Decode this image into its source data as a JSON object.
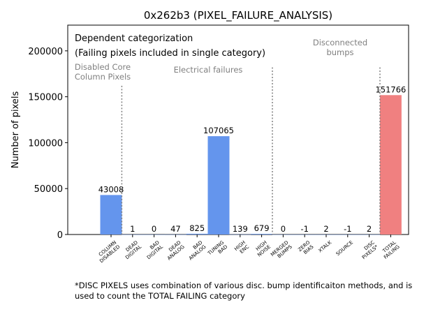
{
  "chart_data": {
    "type": "bar",
    "title": "0x262b3 (PIXEL_FAILURE_ANALYSIS)",
    "xlabel": "",
    "ylabel": "Number of pixels",
    "ylim": [
      0,
      228000
    ],
    "yticks": [
      0,
      50000,
      100000,
      150000,
      200000
    ],
    "ytick_labels": [
      "0",
      "50000",
      "100000",
      "150000",
      "200000"
    ],
    "grid": false,
    "categories": [
      [
        "COLUMN",
        "DISABLED"
      ],
      [
        "DEAD",
        "DIGITAL"
      ],
      [
        "BAD",
        "DIGITAL"
      ],
      [
        "DEAD",
        "ANALOG"
      ],
      [
        "BAD",
        "ANALOG"
      ],
      [
        "TUNING",
        "BAD"
      ],
      [
        "HIGH",
        "ENC"
      ],
      [
        "HIGH",
        "NOISE"
      ],
      [
        "MERGED",
        "BUMPS"
      ],
      [
        "ZERO",
        "BIAS"
      ],
      [
        "XTALK"
      ],
      [
        "SOURCE"
      ],
      [
        "DISC",
        "PIXELS*"
      ],
      [
        "TOTAL",
        "FAILING"
      ]
    ],
    "values": [
      43008,
      1,
      0,
      47,
      825,
      107065,
      139,
      679,
      0,
      -1,
      2,
      -1,
      2,
      151766
    ],
    "value_labels": [
      "43008",
      "1",
      "0",
      "47",
      "825",
      "107065",
      "139",
      "679",
      "0",
      "-1",
      "2",
      "-1",
      "2",
      "151766"
    ],
    "bar_colors": [
      "#6495ED",
      "#6495ED",
      "#6495ED",
      "#6495ED",
      "#6495ED",
      "#6495ED",
      "#6495ED",
      "#6495ED",
      "#6495ED",
      "#6495ED",
      "#6495ED",
      "#6495ED",
      "#6495ED",
      "#F08080"
    ],
    "separators_after_index": [
      0,
      7,
      12
    ],
    "group_labels": [
      {
        "lines": [
          "Disabled Core",
          "Column Pixels"
        ]
      },
      {
        "lines": [
          "Electrical failures"
        ]
      },
      {
        "lines": [
          "Disconnected",
          "bumps"
        ]
      }
    ],
    "annotation_lines": [
      "Dependent categorization",
      "(Failing pixels included in single category)"
    ],
    "footnote_lines": [
      "*DISC PIXELS uses combination of various disc. bump identificaiton methods, and is",
      "used to count the TOTAL FAILING category"
    ]
  }
}
